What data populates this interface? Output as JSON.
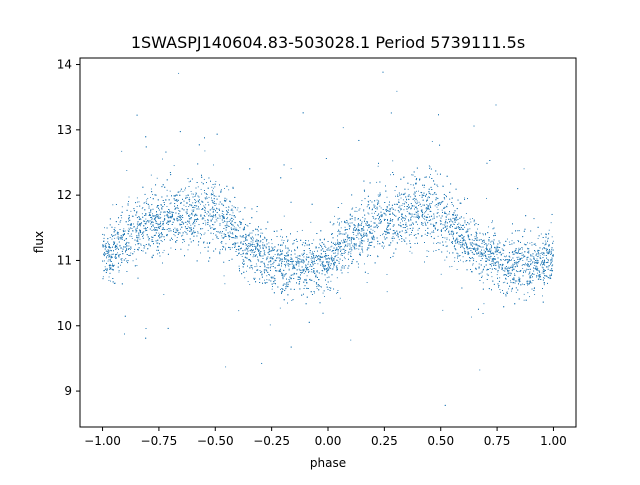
{
  "chart_data": {
    "type": "scatter",
    "title": "1SWASPJ140604.83-503028.1 Period 5739111.5s",
    "xlabel": "phase",
    "ylabel": "flux",
    "xlim": [
      -1.1,
      1.1
    ],
    "ylim": [
      8.45,
      14.1
    ],
    "x_ticks": [
      -1.0,
      -0.75,
      -0.5,
      -0.25,
      0.0,
      0.25,
      0.5,
      0.75,
      1.0
    ],
    "x_tick_labels": [
      "−1.00",
      "−0.75",
      "−0.50",
      "−0.25",
      "0.00",
      "0.25",
      "0.50",
      "0.75",
      "1.00"
    ],
    "y_ticks": [
      9,
      10,
      11,
      12,
      13,
      14
    ],
    "y_tick_labels": [
      "9",
      "10",
      "11",
      "12",
      "13",
      "14"
    ],
    "grid": false,
    "marker_color": "#1f77b4",
    "series": [
      {
        "x": [
          -1.0,
          -0.95,
          -0.9,
          -0.85,
          -0.8,
          -0.75,
          -0.7,
          -0.65,
          -0.6,
          -0.55,
          -0.5,
          -0.45,
          -0.4,
          -0.35,
          -0.3,
          -0.25,
          -0.2,
          -0.15,
          -0.1,
          -0.05,
          0.0,
          0.05,
          0.1,
          0.15,
          0.2,
          0.25,
          0.3,
          0.35,
          0.4,
          0.45,
          0.5,
          0.55,
          0.6,
          0.65,
          0.7,
          0.75,
          0.8,
          0.85,
          0.9,
          0.95,
          1.0
        ],
        "y_center": [
          11.1,
          11.15,
          11.3,
          11.45,
          11.55,
          11.6,
          11.65,
          11.7,
          11.75,
          11.8,
          11.7,
          11.55,
          11.35,
          11.2,
          11.1,
          11.0,
          10.95,
          10.9,
          10.9,
          10.95,
          11.0,
          11.15,
          11.3,
          11.45,
          11.55,
          11.6,
          11.65,
          11.7,
          11.75,
          11.8,
          11.7,
          11.55,
          11.35,
          11.2,
          11.1,
          11.0,
          10.95,
          10.9,
          10.9,
          10.95,
          11.05
        ],
        "y_spread": [
          0.35,
          0.4,
          0.45,
          0.45,
          0.45,
          0.45,
          0.45,
          0.45,
          0.5,
          0.5,
          0.5,
          0.45,
          0.45,
          0.4,
          0.4,
          0.4,
          0.4,
          0.4,
          0.4,
          0.4,
          0.4,
          0.45,
          0.45,
          0.45,
          0.45,
          0.45,
          0.45,
          0.45,
          0.5,
          0.5,
          0.5,
          0.45,
          0.45,
          0.4,
          0.4,
          0.4,
          0.4,
          0.4,
          0.4,
          0.4,
          0.35
        ],
        "y_min": 8.7,
        "y_max": 13.9
      }
    ]
  }
}
